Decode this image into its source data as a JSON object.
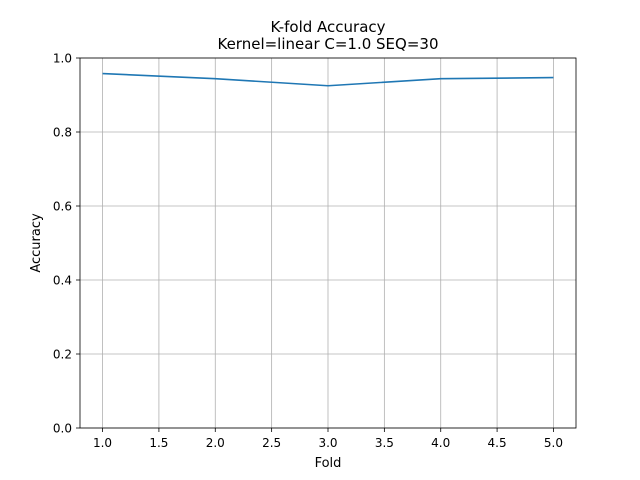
{
  "chart_data": {
    "type": "line",
    "title": "K-fold Accuracy",
    "subtitle": "Kernel=linear C=1.0 SEQ=30",
    "xlabel": "Fold",
    "ylabel": "Accuracy",
    "xlim": [
      0.8,
      5.2
    ],
    "ylim": [
      0.0,
      1.0
    ],
    "xticks": [
      "1.0",
      "1.5",
      "2.0",
      "2.5",
      "3.0",
      "3.5",
      "4.0",
      "4.5",
      "5.0"
    ],
    "yticks": [
      "0.0",
      "0.2",
      "0.4",
      "0.6",
      "0.8",
      "1.0"
    ],
    "grid": true,
    "x": [
      1,
      2,
      3,
      4,
      5
    ],
    "series": [
      {
        "values": [
          0.958,
          0.944,
          0.925,
          0.944,
          0.947
        ],
        "color": "#1f77b4"
      }
    ]
  }
}
